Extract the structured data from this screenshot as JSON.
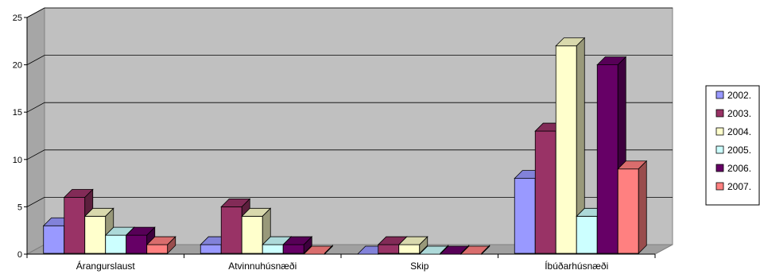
{
  "chart_data": {
    "type": "bar",
    "categories": [
      "Árangurslaust",
      "Atvinnuhúsnæði",
      "Skip",
      "Íbúðarhúsnæði"
    ],
    "series": [
      {
        "name": "2002.",
        "values": [
          3,
          1,
          0,
          8
        ],
        "color": "#9999FF"
      },
      {
        "name": "2003.",
        "values": [
          6,
          5,
          1,
          13
        ],
        "color": "#993366"
      },
      {
        "name": "2004.",
        "values": [
          4,
          4,
          1,
          22
        ],
        "color": "#FFFFCC"
      },
      {
        "name": "2005.",
        "values": [
          2,
          1,
          0,
          4
        ],
        "color": "#CCFFFF"
      },
      {
        "name": "2006.",
        "values": [
          2,
          1,
          0,
          20
        ],
        "color": "#660066"
      },
      {
        "name": "2007.",
        "values": [
          1,
          0,
          0,
          9
        ],
        "color": "#FF8080"
      }
    ],
    "yticks": [
      0,
      5,
      10,
      15,
      20,
      25
    ],
    "ylim": [
      0,
      25
    ],
    "grid": true,
    "legend_position": "right",
    "wall_color": "#C0C0C0"
  }
}
